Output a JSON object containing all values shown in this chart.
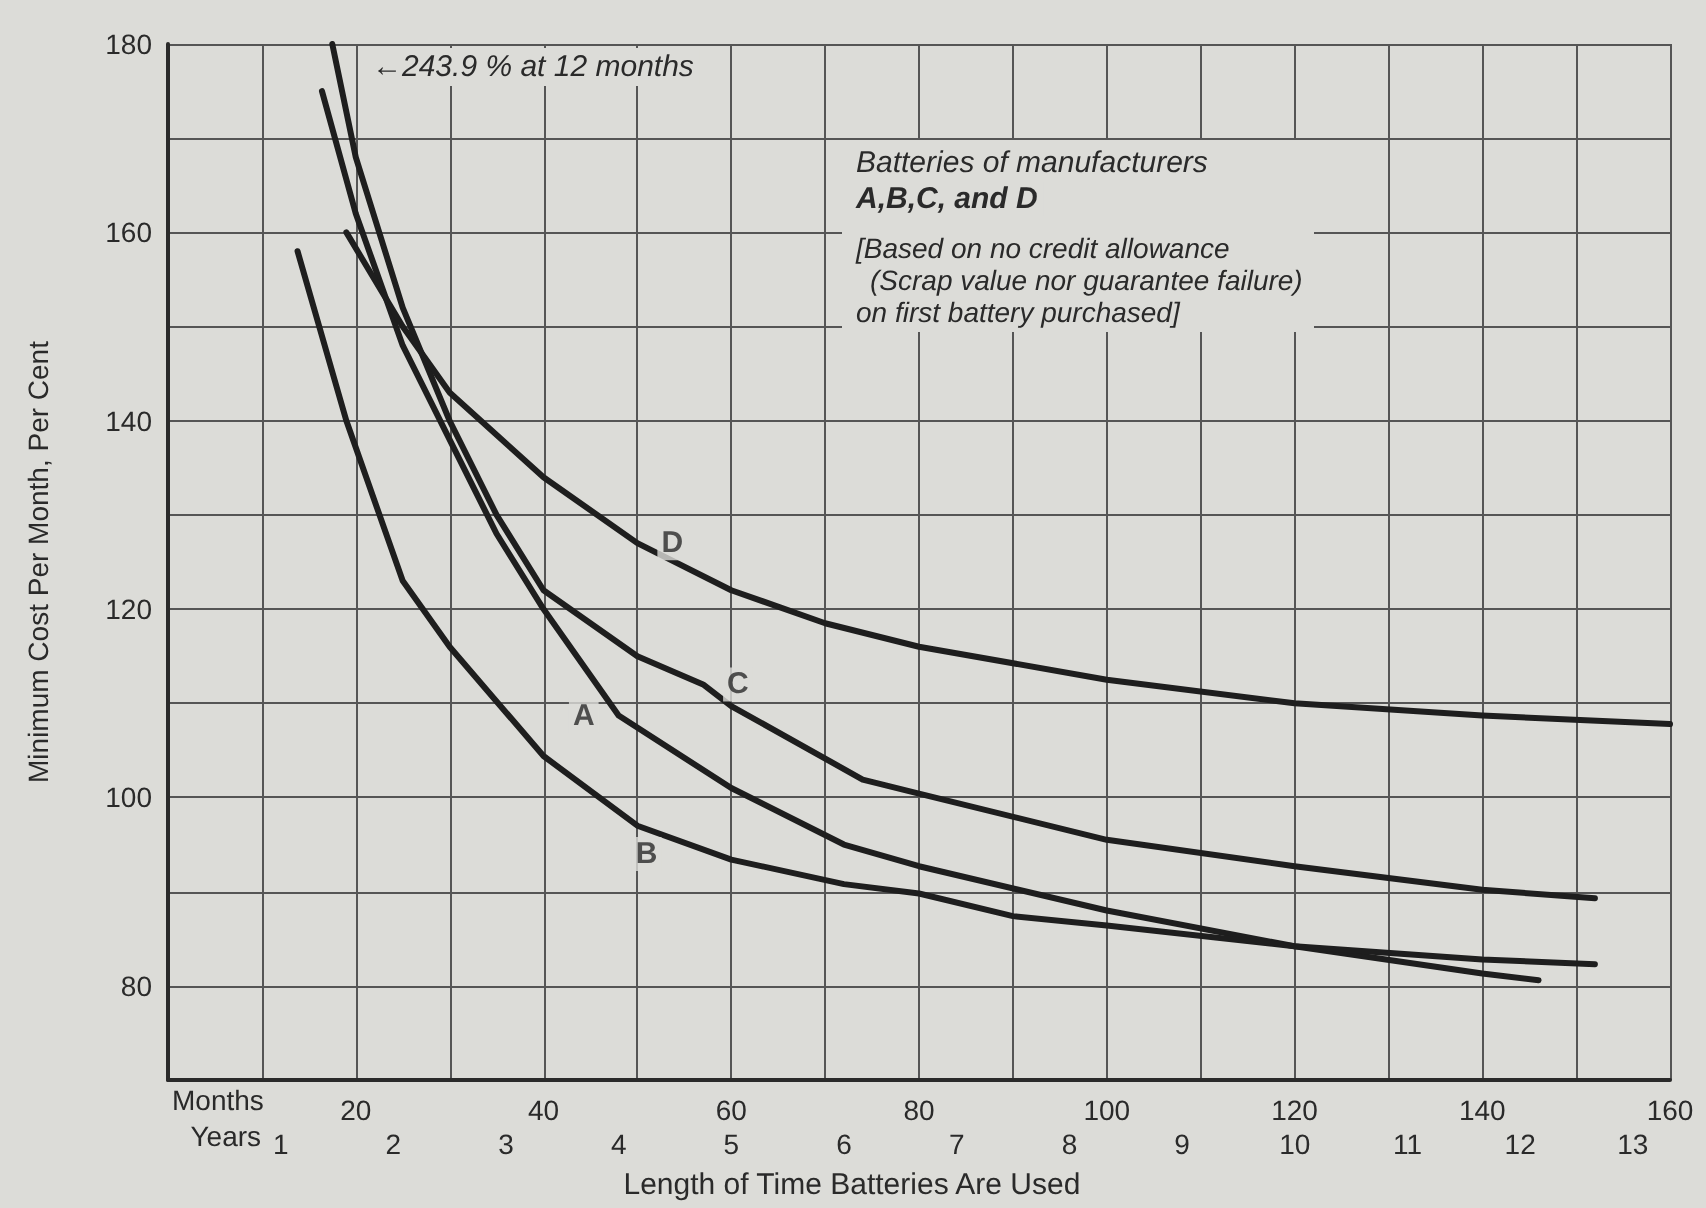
{
  "chart_data": {
    "type": "line",
    "title": "Batteries of manufacturers",
    "subtitle": "A,B,C, and D",
    "xlabel": "Length of Time Batteries Are Used",
    "ylabel": "Minimum Cost Per Month, Per Cent",
    "x2label": "Years",
    "annotations": [
      "←243.9 % at 12 months",
      "[Based on no credit allowance",
      "(Scrap value nor guarantee failure)",
      "on first battery purchased]",
      "Months",
      {
        "text": "A",
        "x": 48,
        "y": 108.7
      },
      {
        "text": "B",
        "x": 54.7,
        "y": 94
      },
      {
        "text": "C",
        "x": 57,
        "y": 112
      },
      {
        "text": "D",
        "x": 50,
        "y": 127
      }
    ],
    "series": [
      {
        "color": "#1e1e1e",
        "x": [
          16.4,
          20,
          25,
          30,
          35,
          40,
          48,
          60,
          72,
          80,
          100,
          120,
          140,
          146
        ],
        "values": [
          175,
          162,
          148,
          138,
          128,
          120,
          108.7,
          101,
          95,
          92.7,
          88,
          84.2,
          81.3,
          80.6
        ]
      },
      {
        "color": "#1e1e1e",
        "x": [
          13.8,
          19,
          25,
          30,
          40,
          50,
          60,
          72,
          80,
          90,
          100,
          120,
          140,
          152
        ],
        "values": [
          158,
          140,
          123,
          116,
          104.4,
          97,
          93.4,
          90.8,
          89.8,
          87.4,
          86.4,
          84.2,
          82.8,
          82.3
        ]
      },
      {
        "color": "#1e1e1e",
        "x": [
          17.5,
          20,
          25,
          30,
          35,
          40,
          50,
          57,
          60,
          74,
          80,
          100,
          120,
          140,
          152
        ],
        "values": [
          180,
          168,
          152,
          140,
          130,
          122,
          115,
          112,
          109.7,
          101.9,
          100.4,
          95.5,
          92.7,
          90.2,
          89.3
        ]
      },
      {
        "color": "#1e1e1e",
        "x": [
          19,
          25,
          30,
          40,
          50,
          60,
          70,
          80,
          100,
          120,
          140,
          160
        ],
        "values": [
          160,
          150,
          143,
          134,
          127,
          122,
          118.5,
          116,
          112.5,
          110,
          108.7,
          107.8
        ]
      }
    ],
    "xlim": [
      0,
      160
    ],
    "xticks": [
      {
        "value": 10,
        "label": null
      },
      20,
      {
        "value": 30,
        "label": null
      },
      40,
      {
        "value": 50,
        "label": null
      },
      60,
      {
        "value": 70,
        "label": null
      },
      80,
      {
        "value": 90,
        "label": null
      },
      100,
      {
        "value": 110,
        "label": null
      },
      120,
      {
        "value": 130,
        "label": null
      },
      140,
      {
        "value": 150,
        "label": null
      },
      160
    ],
    "x2lim": [
      0,
      13.33
    ],
    "x2ticks": [
      1,
      2,
      3,
      4,
      5,
      6,
      7,
      8,
      9,
      10,
      11,
      12,
      13
    ],
    "ylim": [
      70,
      180
    ],
    "yticks": [
      80,
      {
        "value": 90,
        "label": null
      },
      100,
      {
        "value": 110,
        "label": null
      },
      120,
      {
        "value": 130,
        "label": null
      },
      140,
      {
        "value": 150,
        "label": null
      },
      160,
      {
        "value": 170,
        "label": null
      },
      180
    ],
    "grid": true,
    "marker": "none",
    "line_style": "solid"
  }
}
